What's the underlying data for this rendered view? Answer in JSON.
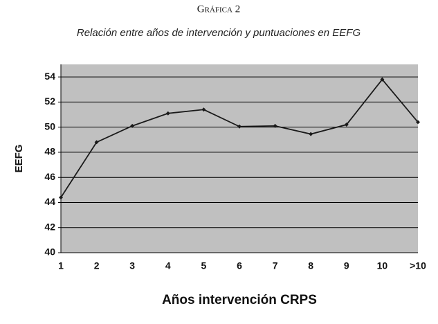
{
  "chart_data": {
    "type": "line",
    "title": "Gráfica 2",
    "subtitle": "Relación entre años de intervención y puntuaciones en EEFG",
    "x_label": "Años intervención CRPS",
    "y_label": "EEFG",
    "categories": [
      "1",
      "2",
      "3",
      "4",
      "5",
      "6",
      "7",
      "8",
      "9",
      "10",
      ">10"
    ],
    "values": [
      44.4,
      48.8,
      50.1,
      51.1,
      51.4,
      50.05,
      50.1,
      49.45,
      50.2,
      53.8,
      50.4
    ],
    "color": "#1a1a1a",
    "ylim": [
      40,
      55
    ],
    "yticks": [
      40,
      42,
      44,
      46,
      48,
      50,
      52,
      54
    ],
    "grid": true
  }
}
